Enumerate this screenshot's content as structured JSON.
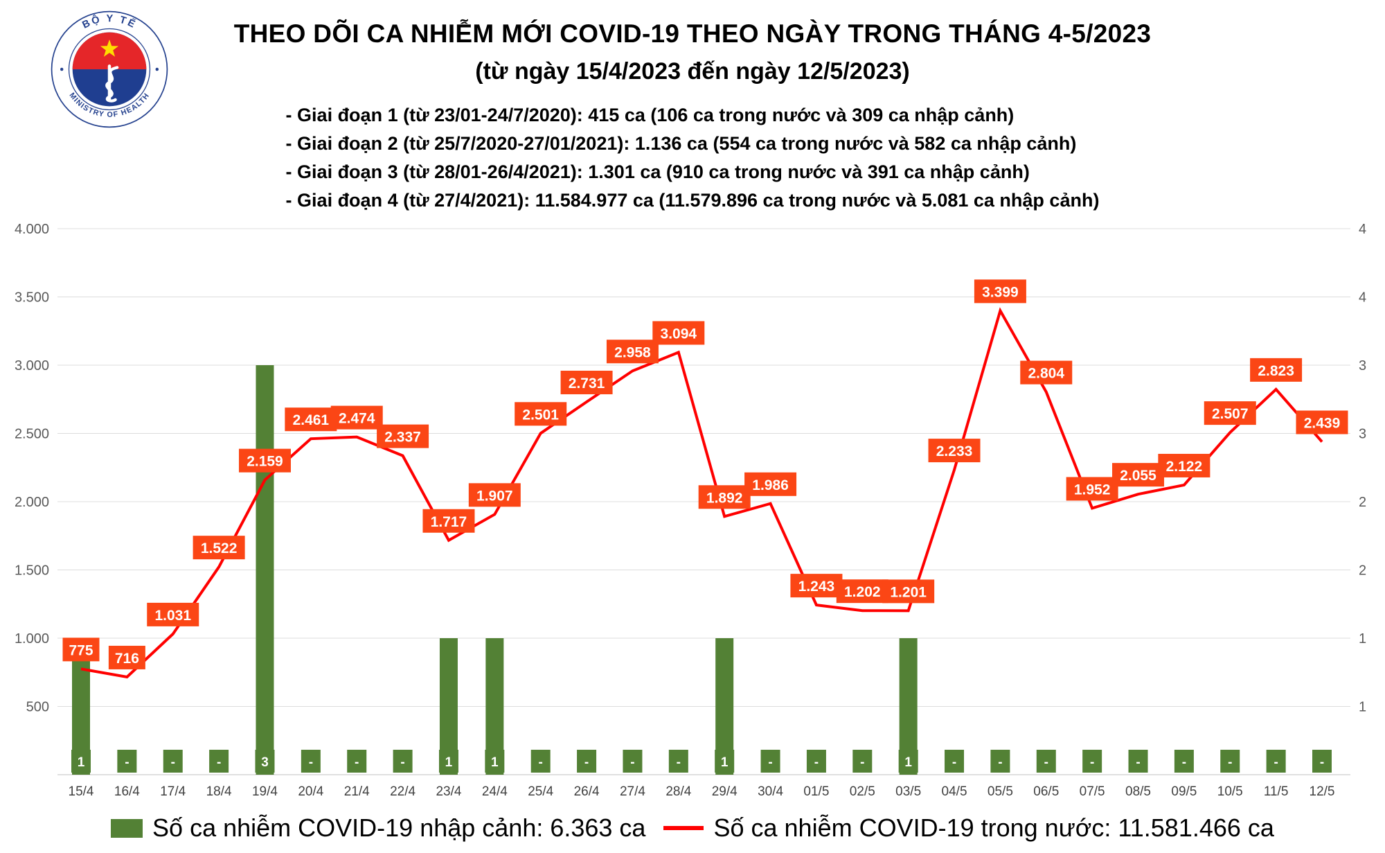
{
  "logo": {
    "top_text": "BỘ Y TẾ",
    "bottom_text": "MINISTRY OF HEALTH"
  },
  "header": {
    "title": "THEO DÕI CA NHIỄM MỚI COVID-19 THEO NGÀY TRONG THÁNG 4-5/2023",
    "subtitle": "(từ ngày 15/4/2023 đến ngày 12/5/2023)",
    "phases": [
      "- Giai đoạn 1 (từ 23/01-24/7/2020): 415 ca (106 ca trong nước và 309 ca nhập cảnh)",
      "- Giai đoạn 2 (từ 25/7/2020-27/01/2021): 1.136 ca (554 ca trong nước và 582 ca nhập cảnh)",
      "- Giai đoạn 3 (từ 28/01-26/4/2021): 1.301 ca (910 ca trong nước và 391 ca nhập cảnh)",
      "- Giai đoạn 4 (từ 27/4/2021): 11.584.977 ca (11.579.896 ca trong nước và 5.081 ca nhập cảnh)"
    ]
  },
  "chart_data": {
    "type": "bar+line",
    "title": "THEO DÕI CA NHIỄM MỚI COVID-19 THEO NGÀY TRONG THÁNG 4-5/2023",
    "categories": [
      "15/4",
      "16/4",
      "17/4",
      "18/4",
      "19/4",
      "20/4",
      "21/4",
      "22/4",
      "23/4",
      "24/4",
      "25/4",
      "26/4",
      "27/4",
      "28/4",
      "29/4",
      "30/4",
      "01/5",
      "02/5",
      "03/5",
      "04/5",
      "05/5",
      "06/5",
      "07/5",
      "08/5",
      "09/5",
      "10/5",
      "11/5",
      "12/5"
    ],
    "series": [
      {
        "name": "Số ca nhiễm COVID-19 nhập cảnh",
        "type": "bar",
        "axis": "right",
        "color": "#538135",
        "values": [
          1,
          0,
          0,
          0,
          3,
          0,
          0,
          0,
          1,
          1,
          0,
          0,
          0,
          0,
          1,
          0,
          0,
          0,
          1,
          0,
          0,
          0,
          0,
          0,
          0,
          0,
          0,
          0
        ],
        "labels": [
          "1",
          "-",
          "-",
          "-",
          "3",
          "-",
          "-",
          "-",
          "1",
          "1",
          "-",
          "-",
          "-",
          "-",
          "1",
          "-",
          "-",
          "-",
          "1",
          "-",
          "-",
          "-",
          "-",
          "-",
          "-",
          "-",
          "-",
          "-"
        ]
      },
      {
        "name": "Số ca nhiễm COVID-19 trong nước",
        "type": "line",
        "axis": "left",
        "color": "#ff0000",
        "label_color": "#fb4615",
        "values": [
          775,
          716,
          1031,
          1522,
          2159,
          2461,
          2474,
          2337,
          1717,
          1907,
          2501,
          2731,
          2958,
          3094,
          1892,
          1986,
          1243,
          1202,
          1201,
          2233,
          3399,
          2804,
          1952,
          2055,
          2122,
          2507,
          2823,
          2439
        ],
        "labels": [
          "775",
          "716",
          "1.031",
          "1.522",
          "2.159",
          "2.461",
          "2.474",
          "2.337",
          "1.717",
          "1.907",
          "2.501",
          "2.731",
          "2.958",
          "3.094",
          "1.892",
          "1.986",
          "1.243",
          "1.202",
          "1.201",
          "2.233",
          "3.399",
          "2.804",
          "1.952",
          "2.055",
          "2.122",
          "2.507",
          "2.823",
          "2.439"
        ]
      }
    ],
    "left_axis": {
      "min": 0,
      "max": 4000,
      "step": 500,
      "tick_labels": [
        "4.000",
        "3.500",
        "3.000",
        "2.500",
        "2.000",
        "1.500",
        "1.000",
        "500"
      ]
    },
    "right_axis": {
      "min": 0,
      "max": 4,
      "tick_labels": [
        "4",
        "4",
        "3",
        "3",
        "2",
        "2",
        "1",
        "1"
      ]
    },
    "grid": true,
    "legend_position": "bottom"
  },
  "legend": [
    {
      "swatch": "bar",
      "color": "#538135",
      "label": "Số ca nhiễm COVID-19 nhập cảnh: 6.363 ca"
    },
    {
      "swatch": "line",
      "color": "#ff0000",
      "label": "Số ca nhiễm COVID-19 trong nước: 11.581.466 ca"
    }
  ]
}
